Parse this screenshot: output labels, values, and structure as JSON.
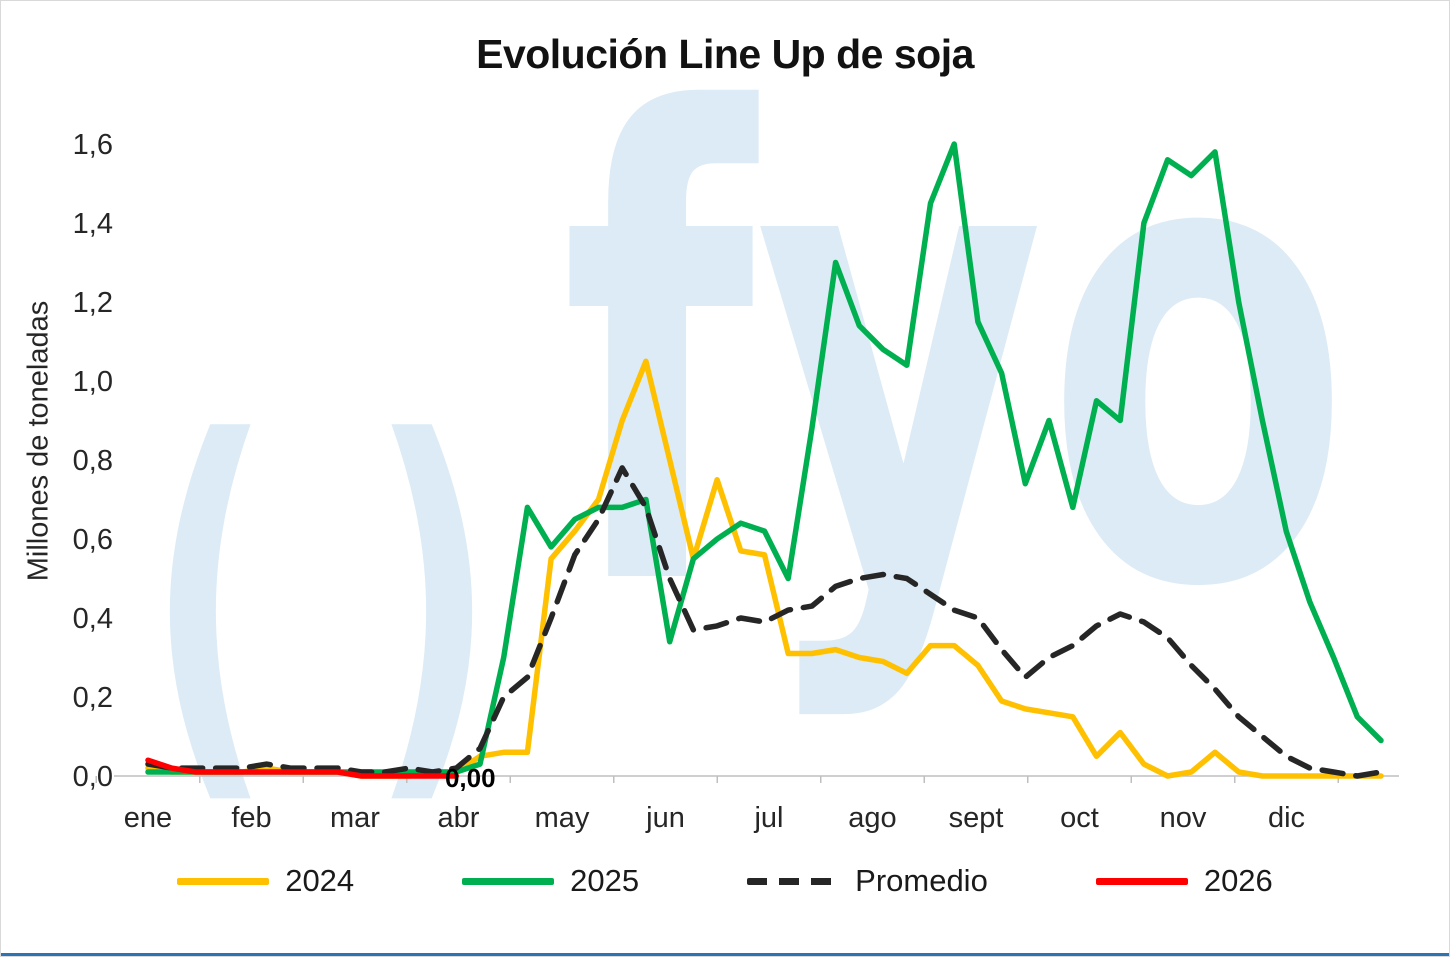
{
  "watermark": {
    "left_glyph": "( )",
    "brand": "fyo",
    "color": "#dcebf5"
  },
  "chart_data": {
    "type": "line",
    "title": "Evolución Line Up de soja",
    "xlabel": "",
    "ylabel": "Millones de toneladas",
    "x_unit": "semana (weekly points, ene–dic)",
    "x_tick_labels": [
      "ene",
      "feb",
      "mar",
      "abr",
      "may",
      "jun",
      "jul",
      "ago",
      "sept",
      "oct",
      "nov",
      "dic"
    ],
    "y_tick_labels": [
      "0,0",
      "0,2",
      "0,4",
      "0,6",
      "0,8",
      "1,0",
      "1,2",
      "1,4",
      "1,6"
    ],
    "ylim": [
      0,
      1.6
    ],
    "grid": false,
    "legend_position": "bottom",
    "series": [
      {
        "name": "2024",
        "color": "#FFC000",
        "dash": false,
        "values": [
          0.02,
          0.01,
          0.01,
          0.01,
          0.01,
          0.02,
          0.01,
          0.01,
          0.01,
          0.0,
          0.0,
          0.0,
          0.01,
          0.01,
          0.05,
          0.06,
          0.06,
          0.55,
          0.62,
          0.7,
          0.9,
          1.05,
          0.8,
          0.55,
          0.75,
          0.57,
          0.56,
          0.31,
          0.31,
          0.32,
          0.3,
          0.29,
          0.26,
          0.33,
          0.33,
          0.28,
          0.19,
          0.17,
          0.16,
          0.15,
          0.05,
          0.11,
          0.03,
          0.0,
          0.01,
          0.06,
          0.01,
          0.0,
          0.0,
          0.0,
          0.0,
          0.0,
          0.0
        ]
      },
      {
        "name": "2025",
        "color": "#00B050",
        "dash": false,
        "values": [
          0.01,
          0.01,
          0.01,
          0.01,
          0.01,
          0.01,
          0.01,
          0.01,
          0.01,
          0.01,
          0.01,
          0.01,
          0.01,
          0.01,
          0.03,
          0.3,
          0.68,
          0.58,
          0.65,
          0.68,
          0.68,
          0.7,
          0.34,
          0.55,
          0.6,
          0.64,
          0.62,
          0.5,
          0.88,
          1.3,
          1.14,
          1.08,
          1.04,
          1.45,
          1.6,
          1.15,
          1.02,
          0.74,
          0.9,
          0.68,
          0.95,
          0.9,
          1.4,
          1.56,
          1.52,
          1.58,
          1.2,
          0.9,
          0.62,
          0.44,
          0.3,
          0.15,
          0.09
        ]
      },
      {
        "name": "Promedio",
        "color": "#262626",
        "dash": true,
        "values": [
          0.03,
          0.02,
          0.02,
          0.02,
          0.02,
          0.03,
          0.02,
          0.02,
          0.02,
          0.01,
          0.01,
          0.02,
          0.01,
          0.02,
          0.07,
          0.2,
          0.25,
          0.4,
          0.56,
          0.65,
          0.78,
          0.68,
          0.5,
          0.37,
          0.38,
          0.4,
          0.39,
          0.42,
          0.43,
          0.48,
          0.5,
          0.51,
          0.5,
          0.46,
          0.42,
          0.4,
          0.32,
          0.25,
          0.3,
          0.33,
          0.38,
          0.41,
          0.39,
          0.35,
          0.28,
          0.22,
          0.15,
          0.1,
          0.05,
          0.02,
          0.01,
          0.0,
          0.01
        ]
      },
      {
        "name": "2026",
        "color": "#FF0000",
        "dash": false,
        "values": [
          0.04,
          0.02,
          0.01,
          0.01,
          0.01,
          0.01,
          0.01,
          0.01,
          0.01,
          0.0,
          0.0,
          0.0,
          0.0,
          0.0
        ]
      }
    ],
    "annotations": [
      {
        "text": "0,00",
        "series": "2026",
        "position": "last-point"
      }
    ]
  }
}
